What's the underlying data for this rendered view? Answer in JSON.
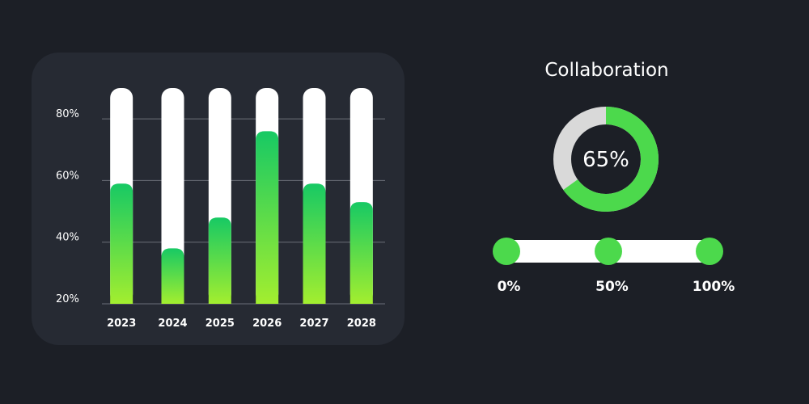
{
  "chart_data": {
    "type": "bar",
    "categories": [
      "2023",
      "2024",
      "2025",
      "2026",
      "2027",
      "2028"
    ],
    "values": [
      59,
      38,
      48,
      76,
      59,
      53
    ],
    "ylim": [
      20,
      90
    ],
    "yticks": [
      20,
      40,
      60,
      80
    ],
    "ytick_labels": [
      "20%",
      "40%",
      "60%",
      "80%"
    ],
    "title": "",
    "xlabel": "",
    "ylabel": ""
  },
  "collaboration": {
    "title": "Collaboration",
    "percent": 65,
    "percent_label": "65%"
  },
  "slider": {
    "labels": [
      "0%",
      "50%",
      "100%"
    ],
    "stops": [
      0,
      50,
      100
    ]
  },
  "colors": {
    "bar_top": "#17c964",
    "bar_bottom": "#a3ee2f",
    "track": "#ffffff",
    "donut_fill": "#4cd94c",
    "donut_track": "#d9d9d9",
    "knob": "#4cd94c",
    "grid": "#6b6f78"
  }
}
